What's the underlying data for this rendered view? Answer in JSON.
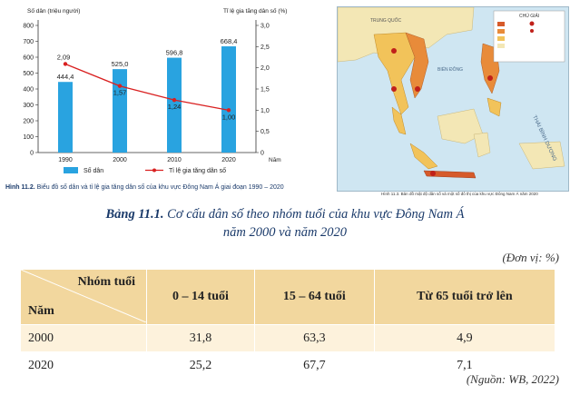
{
  "chart_data": {
    "type": "bar+line",
    "categories": [
      "1990",
      "2000",
      "2010",
      "2020"
    ],
    "series": [
      {
        "name": "Số dân",
        "values": [
          444.4,
          525.0,
          596.8,
          668.4
        ],
        "color": "#29a3e0"
      },
      {
        "name": "Tỉ lệ gia tăng dân số",
        "values": [
          2.09,
          1.57,
          1.24,
          1.0
        ],
        "color": "#d92020"
      }
    ],
    "bar_labels": [
      "444,4",
      "525,0",
      "596,8",
      "668,4"
    ],
    "line_labels": [
      "2,09",
      "1,57",
      "1,24",
      "1,00"
    ],
    "ylabel": "Số dân (triệu người)",
    "y2label": "Tỉ lệ gia tăng dân số (%)",
    "xlabel": "Năm",
    "ylim": [
      0,
      800
    ],
    "y2lim": [
      0,
      3
    ],
    "yticks": [
      "0",
      "100",
      "200",
      "300",
      "400",
      "500",
      "600",
      "700",
      "800"
    ],
    "y2ticks": [
      "0",
      "0,5",
      "1,0",
      "1,5",
      "2,0",
      "2,5",
      "3,0"
    ],
    "legend_position": "bottom"
  },
  "figure_caption": {
    "label": "Hình 11.2.",
    "text": " Biểu đồ số dân và tỉ lệ gia tăng dân số của khu vực Đông Nam Á  giai đoạn 1990 – 2020"
  },
  "map": {
    "label_china": "TRUNG QUỐC",
    "label_sea": "BIỂN ĐÔNG",
    "label_ocean": "THÁI BÌNH DƯƠNG",
    "legend_title": "CHÚ GIẢI",
    "caption": "Hình 11.3. Bản đồ mật độ dân số và một số đô thị của khu vực Đông Nam Á năm 2020"
  },
  "table": {
    "title_label": "Bảng 11.1.",
    "title_text": " Cơ cấu dân số theo nhóm tuổi của khu vực Đông Nam Á",
    "title_line2": "năm 2000 và năm 2020",
    "unit": "(Đơn vị: %)",
    "corner_top": "Nhóm tuổi",
    "corner_bottom": "Năm",
    "headers": [
      "0 – 14 tuổi",
      "15 – 64 tuổi",
      "Từ 65 tuổi trở lên"
    ],
    "rows": [
      {
        "year": "2000",
        "values": [
          "31,8",
          "63,3",
          "4,9"
        ]
      },
      {
        "year": "2020",
        "values": [
          "25,2",
          "67,7",
          "7,1"
        ]
      }
    ],
    "source": "(Nguồn: WB, 2022)"
  }
}
